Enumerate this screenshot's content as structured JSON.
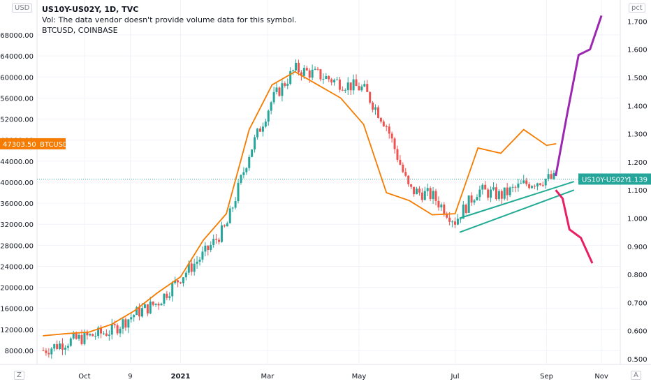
{
  "legend": {
    "symbol": "US10Y-US02Y, 1D, TVC",
    "volume_note": "Vol: The data vendor doesn't provide volume data for this symbol.",
    "secondary_symbol": "BTCUSD, COINBASE"
  },
  "left_axis": {
    "unit_label": "USD",
    "ticks": [
      {
        "v": 8000,
        "label": "8000.00"
      },
      {
        "v": 12000,
        "label": "12000.00"
      },
      {
        "v": 16000,
        "label": "16000.00"
      },
      {
        "v": 20000,
        "label": "20000.00"
      },
      {
        "v": 24000,
        "label": "24000.00"
      },
      {
        "v": 28000,
        "label": "28000.00"
      },
      {
        "v": 32000,
        "label": "32000.00"
      },
      {
        "v": 36000,
        "label": "36000.00"
      },
      {
        "v": 40000,
        "label": "40000.00"
      },
      {
        "v": 44000,
        "label": "44000.00"
      },
      {
        "v": 48000,
        "label": "48000.00"
      },
      {
        "v": 52000,
        "label": "52000.00"
      },
      {
        "v": 56000,
        "label": "56000.00"
      },
      {
        "v": 60000,
        "label": "60000.00"
      },
      {
        "v": 64000,
        "label": "64000.00"
      },
      {
        "v": 68000,
        "label": "68000.00"
      }
    ],
    "price_tag": {
      "value": 47303.5,
      "price": "47303.50",
      "label": "BTCUSD"
    }
  },
  "right_axis": {
    "unit_label": "pct",
    "ticks": [
      {
        "v": 0.5,
        "label": "0.500"
      },
      {
        "v": 0.6,
        "label": "0.600"
      },
      {
        "v": 0.7,
        "label": "0.700"
      },
      {
        "v": 0.8,
        "label": "0.800"
      },
      {
        "v": 0.9,
        "label": "0.900"
      },
      {
        "v": 1.0,
        "label": "1.000"
      },
      {
        "v": 1.1,
        "label": "1.100"
      },
      {
        "v": 1.2,
        "label": "1.200"
      },
      {
        "v": 1.3,
        "label": "1.300"
      },
      {
        "v": 1.4,
        "label": "1.400"
      },
      {
        "v": 1.5,
        "label": "1.500"
      },
      {
        "v": 1.6,
        "label": "1.600"
      },
      {
        "v": 1.7,
        "label": "1.700"
      }
    ],
    "price_tag": {
      "value": 1.139,
      "label": "US10Y-US02Y",
      "price": "1.139"
    }
  },
  "time_axis": {
    "ticks": [
      {
        "d": 0.9,
        "label": "Oct"
      },
      {
        "d": 1.9,
        "label": "9"
      },
      {
        "d": 3.0,
        "label": "2021"
      },
      {
        "d": 4.9,
        "label": "Mar"
      },
      {
        "d": 6.9,
        "label": "May"
      },
      {
        "d": 9.0,
        "label": "Jul"
      },
      {
        "d": 11.0,
        "label": "Sep"
      },
      {
        "d": 12.2,
        "label": "Nov"
      }
    ],
    "left_button": "Z",
    "right_button": "A"
  },
  "colors": {
    "up": "#26a69a",
    "down": "#ef5350",
    "btc": "#f57c00",
    "spread_tag": "#26a69a",
    "btc_tag": "#f57c00",
    "wedge": "#22ab94",
    "proj_up": "#9c27b0",
    "proj_down": "#e91e63",
    "grid": "#f0f3fa",
    "axis_text": "#131722"
  },
  "chart_data": {
    "type": "line",
    "time_unit": "months since start (Sep 2020)",
    "series": [
      {
        "name": "US10Y-US02Y",
        "axis": "right",
        "style": "candlestick",
        "x": [
          0.0,
          0.5,
          1.0,
          1.5,
          2.0,
          2.5,
          3.0,
          3.5,
          4.0,
          4.5,
          5.0,
          5.5,
          6.0,
          6.5,
          7.0,
          7.5,
          8.0,
          8.5,
          9.0,
          9.5,
          10.0,
          10.5,
          11.0,
          11.2
        ],
        "y": [
          0.53,
          0.56,
          0.58,
          0.6,
          0.66,
          0.7,
          0.79,
          0.87,
          0.97,
          1.23,
          1.42,
          1.53,
          1.51,
          1.48,
          1.46,
          1.33,
          1.1,
          1.08,
          0.99,
          1.1,
          1.08,
          1.12,
          1.14,
          1.14
        ]
      },
      {
        "name": "BTCUSD",
        "axis": "left",
        "style": "line",
        "x": [
          0.0,
          0.5,
          1.0,
          1.5,
          2.0,
          2.5,
          3.0,
          3.5,
          4.0,
          4.5,
          5.0,
          5.5,
          6.0,
          6.5,
          7.0,
          7.5,
          8.0,
          8.5,
          9.0,
          9.5,
          10.0,
          10.5,
          11.0,
          11.2
        ],
        "y": [
          10800,
          11200,
          11500,
          13000,
          15600,
          19000,
          22000,
          29000,
          34000,
          50000,
          58500,
          61000,
          58500,
          56000,
          51000,
          38000,
          36500,
          33800,
          34000,
          46500,
          45500,
          50000,
          47000,
          47300
        ]
      }
    ]
  },
  "projections": {
    "up": {
      "x": [
        11.2,
        11.45,
        11.7,
        11.95,
        12.2
      ],
      "y": [
        1.15,
        1.37,
        1.58,
        1.6,
        1.72
      ]
    },
    "down": {
      "x": [
        11.2,
        11.35,
        11.5,
        11.75,
        12.0
      ],
      "y": [
        1.1,
        1.07,
        0.96,
        0.93,
        0.84
      ]
    }
  }
}
